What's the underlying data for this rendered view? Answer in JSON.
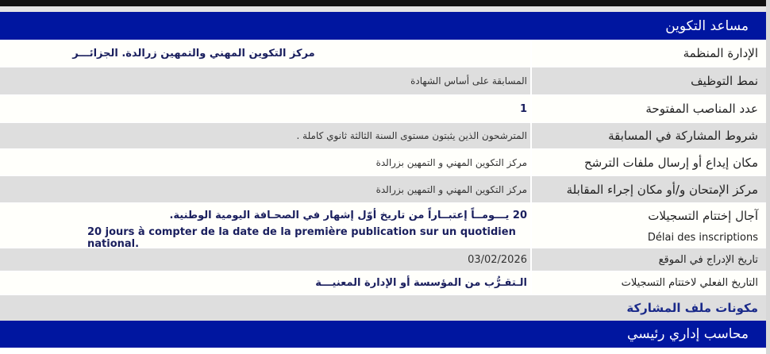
{
  "job1": {
    "title": "مساعد التكوين",
    "rows": [
      {
        "label": "الإدارة المنظمة",
        "value": "مركز التكوين المهني والتمهين زرالدة. الجزائـــر"
      },
      {
        "label": "نمط التوظيف",
        "value": "المسابقة على أساس الشهادة"
      },
      {
        "label": "عدد المناصب المفتوحة",
        "value": "1"
      },
      {
        "label": "شروط المشاركة في المسابقة",
        "value": "المترشحون الذين يثبتون مستوى السنة الثالثة ثانوي كاملة ."
      },
      {
        "label": "مكان إيداع أو إرسال ملفات الترشح",
        "value": "مركز التكوين المهني و التمهين بزرالدة"
      },
      {
        "label": "مركز الإمتحان و/أو مكان إجراء المقابلة",
        "value": "مركز التكوين المهني و التمهين بزرالدة"
      },
      {
        "label": "آجال إختتام التسجيلات",
        "value": "20 يـــومــاً إعتبــاراً من تاريخ أوّل إشهار في الصحـافة اليومية الوطنية."
      },
      {
        "label": "Délai des inscriptions",
        "value": "20 jours à compter de la date de la première publication sur un quotidien national."
      },
      {
        "label": "تاريخ الإدراج في الموقع",
        "value": "03/02/2026"
      },
      {
        "label": "التاريخ الفعلي لاختتام التسجيلات",
        "value": "الـتقـرُّب من المؤسسة أو الإدارة المعنيـــة"
      }
    ],
    "section": "مكونات ملف المشاركة"
  },
  "job2": {
    "title": "محاسب إداري رئيسي"
  }
}
